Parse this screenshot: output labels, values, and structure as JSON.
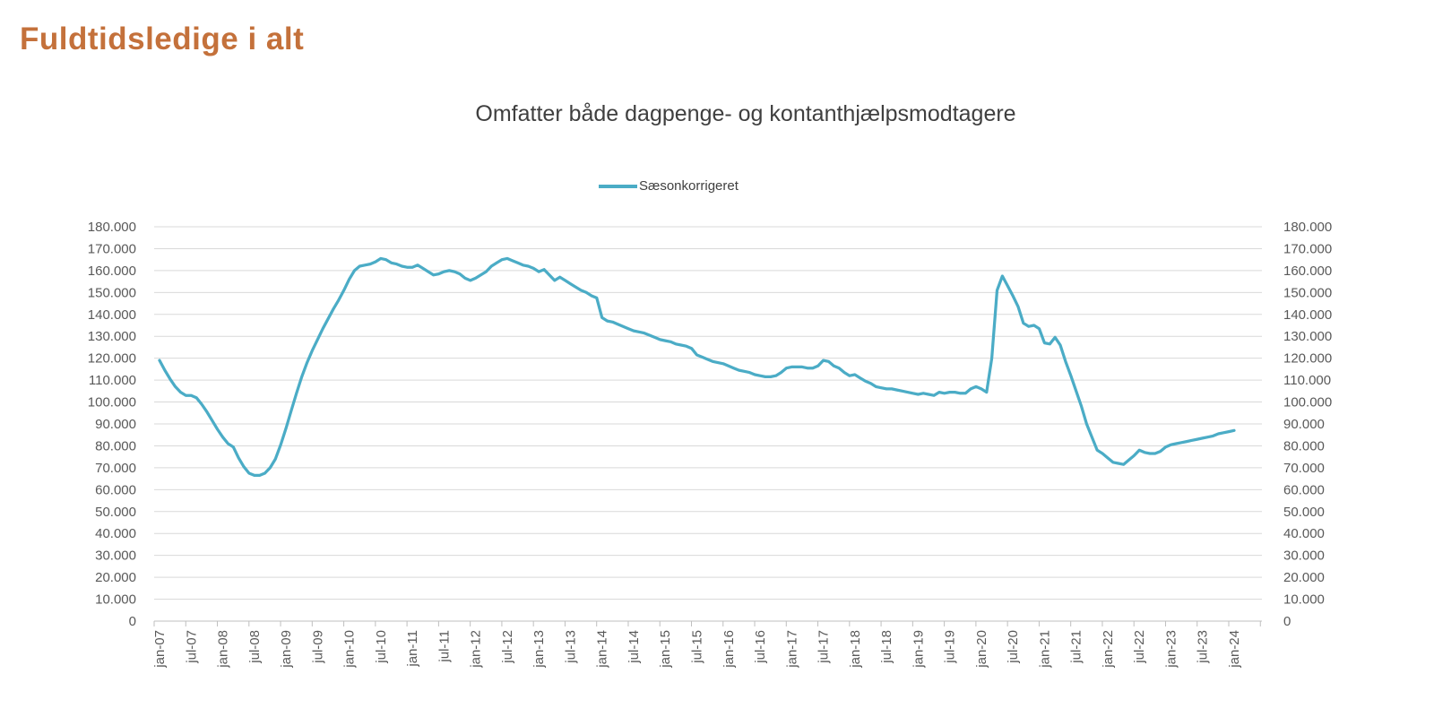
{
  "header": {
    "title": "Fuldtidsledige i alt",
    "title_color": "#c4713b"
  },
  "chart": {
    "subtitle": "Omfatter både dagpenge- og kontanthjælpsmodtagere",
    "legend": {
      "label": "Sæsonkorrigeret",
      "line_color": "#4bacc6"
    },
    "colors": {
      "line": "#4bacc6",
      "gridline": "#d9d9d9",
      "axis": "#bfbfbf",
      "axis_text": "#595959",
      "subtitle_text": "#3f3f3f"
    }
  },
  "chart_data": {
    "type": "line",
    "title": "Omfatter både dagpenge- og kontanthjælpsmodtagere",
    "series_name": "Sæsonkorrigeret",
    "frequency": "monthly",
    "start_month": "jan-07",
    "end_month": "jan-24",
    "ylim": [
      0,
      180000
    ],
    "y_ticks": [
      0,
      10000,
      20000,
      30000,
      40000,
      50000,
      60000,
      70000,
      80000,
      90000,
      100000,
      110000,
      120000,
      130000,
      140000,
      150000,
      160000,
      170000,
      180000
    ],
    "y_axis_sides": "left and right, Danish number format with dot thousand separator",
    "grid": "horizontal light gray lines",
    "legend_position": "top center",
    "x_tick_labels": [
      "jan-07",
      "jul-07",
      "jan-08",
      "jul-08",
      "jan-09",
      "jul-09",
      "jan-10",
      "jul-10",
      "jan-11",
      "jul-11",
      "jan-12",
      "jul-12",
      "jan-13",
      "jul-13",
      "jan-14",
      "jul-14",
      "jan-15",
      "jul-15",
      "jan-16",
      "jul-16",
      "jan-17",
      "jul-17",
      "jan-18",
      "jul-18",
      "jan-19",
      "jul-19",
      "jan-20",
      "jul-20",
      "jan-21",
      "jul-21",
      "jan-22",
      "jul-22",
      "jan-23",
      "jul-23",
      "jan-24"
    ],
    "values": [
      119000,
      114500,
      110500,
      107000,
      104500,
      103000,
      103000,
      102000,
      99000,
      95500,
      91500,
      87500,
      84000,
      81000,
      79500,
      74500,
      70500,
      67500,
      66500,
      66500,
      67500,
      70000,
      74000,
      80500,
      88000,
      96000,
      104000,
      111500,
      118000,
      123500,
      128500,
      133500,
      138000,
      142500,
      146500,
      151000,
      156000,
      160000,
      162000,
      162500,
      163000,
      164000,
      165500,
      165000,
      163500,
      163000,
      162000,
      161500,
      161500,
      162500,
      161000,
      159500,
      158000,
      158500,
      159500,
      160000,
      159500,
      158500,
      156500,
      155500,
      156500,
      158000,
      159500,
      162000,
      163500,
      165000,
      165500,
      164500,
      163500,
      162500,
      162000,
      161000,
      159500,
      160500,
      158000,
      155500,
      157000,
      155500,
      154000,
      152500,
      151000,
      150000,
      148500,
      147500,
      138500,
      137000,
      136500,
      135500,
      134500,
      133500,
      132500,
      132000,
      131500,
      130500,
      129500,
      128500,
      128000,
      127500,
      126500,
      126000,
      125500,
      124500,
      121500,
      120500,
      119500,
      118500,
      118000,
      117500,
      116500,
      115500,
      114500,
      114000,
      113500,
      112500,
      112000,
      111500,
      111500,
      112000,
      113500,
      115500,
      116000,
      116000,
      116000,
      115500,
      115500,
      116500,
      119000,
      118500,
      116500,
      115500,
      113500,
      112000,
      112500,
      111000,
      109500,
      108500,
      107000,
      106500,
      106000,
      106000,
      105500,
      105000,
      104500,
      104000,
      103500,
      104000,
      103500,
      103000,
      104500,
      104000,
      104500,
      104500,
      104000,
      104000,
      106000,
      107000,
      106000,
      104500,
      120000,
      151000,
      157500,
      153000,
      148500,
      143500,
      136000,
      134500,
      135000,
      133500,
      127000,
      126500,
      129500,
      126000,
      118500,
      112000,
      105000,
      98000,
      90000,
      84000,
      78000,
      76500,
      74500,
      72500,
      72000,
      71500,
      73500,
      75500,
      78000,
      77000,
      76500,
      76500,
      77500,
      79500,
      80500,
      81000,
      81500,
      82000,
      82500,
      83000,
      83500,
      84000,
      84500,
      85500,
      86000,
      86500,
      87000
    ]
  }
}
